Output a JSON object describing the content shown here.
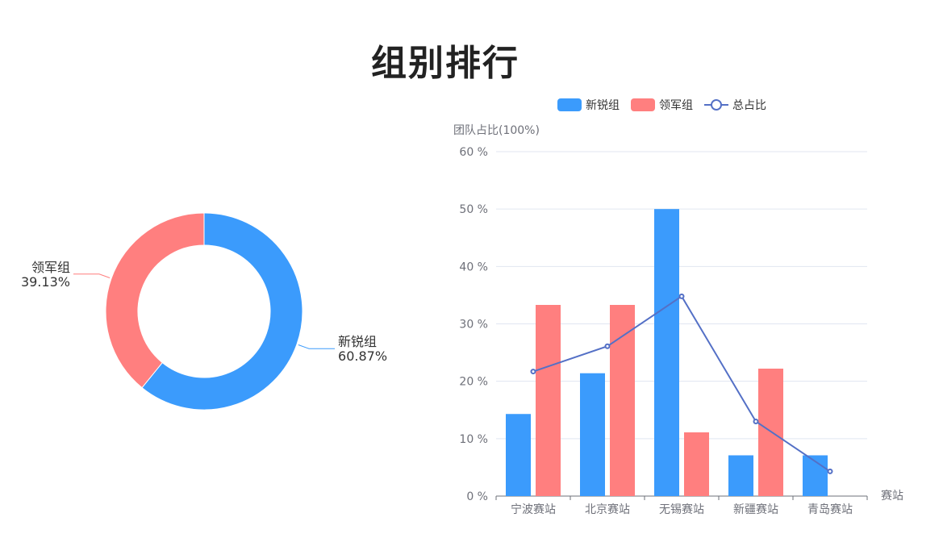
{
  "title": "组别排行",
  "colors": {
    "new": "#3b9bfc",
    "lead": "#ff7f7f",
    "line": "#5470c6",
    "grid": "#e0e6f1",
    "axis": "#6e7079"
  },
  "chart_data": [
    {
      "type": "pie",
      "variant": "donut",
      "slices": [
        {
          "name": "新锐组",
          "value": 60.87,
          "label": "60.87%",
          "color": "#3b9bfc"
        },
        {
          "name": "领军组",
          "value": 39.13,
          "label": "39.13%",
          "color": "#ff7f7f"
        }
      ]
    },
    {
      "type": "bar",
      "categories": [
        "宁波赛站",
        "北京赛站",
        "无锡赛站",
        "新疆赛站",
        "青岛赛站"
      ],
      "series": [
        {
          "name": "新锐组",
          "type": "bar",
          "values": [
            14.3,
            21.4,
            50.0,
            7.1,
            7.1
          ],
          "color": "#3b9bfc"
        },
        {
          "name": "领军组",
          "type": "bar",
          "values": [
            33.3,
            33.3,
            11.1,
            22.2,
            0
          ],
          "color": "#ff7f7f"
        },
        {
          "name": "总占比",
          "type": "line",
          "values": [
            21.7,
            26.1,
            34.8,
            13.0,
            4.3
          ],
          "color": "#5470c6"
        }
      ],
      "ylabel": "团队占比(100%)",
      "xlabel": "赛站",
      "ylim": [
        0,
        60
      ],
      "yticks": [
        "0 %",
        "10 %",
        "20 %",
        "30 %",
        "40 %",
        "50 %",
        "60 %"
      ],
      "yticks_values": [
        0,
        10,
        20,
        30,
        40,
        50,
        60
      ],
      "grid": true,
      "legend_position": "top-center"
    }
  ]
}
